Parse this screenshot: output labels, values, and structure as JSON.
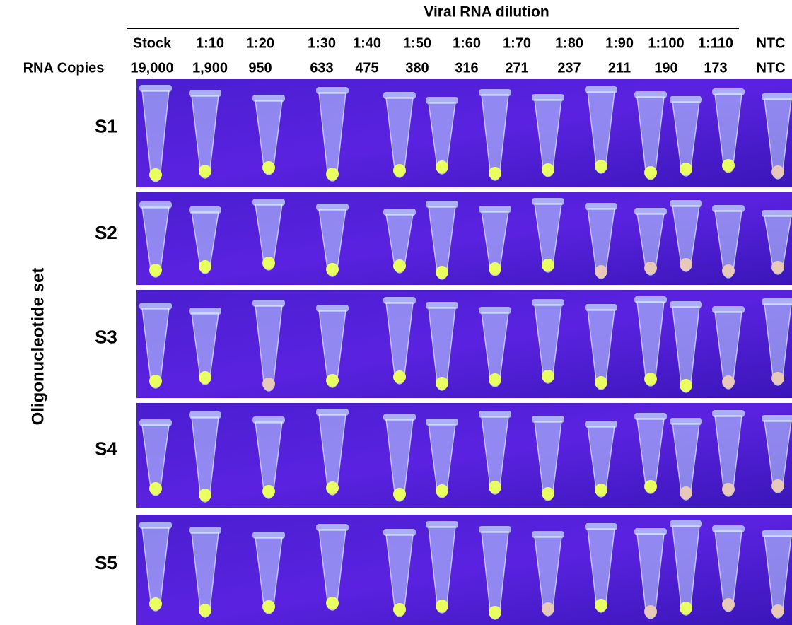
{
  "header": {
    "title": "Viral RNA dilution",
    "dilutions": [
      "Stock",
      "1:10",
      "1:20",
      "1:30",
      "1:40",
      "1:50",
      "1:60",
      "1:70",
      "1:80",
      "1:90",
      "1:100",
      "1:110",
      "NTC"
    ],
    "copies_label": "RNA Copies",
    "copies": [
      "19,000",
      "1,900",
      "950",
      "633",
      "475",
      "380",
      "316",
      "271",
      "237",
      "211",
      "190",
      "173",
      "NTC"
    ]
  },
  "axis_label": "Oligonucleotide set",
  "rows": [
    "S1",
    "S2",
    "S3",
    "S4",
    "S5"
  ]
}
